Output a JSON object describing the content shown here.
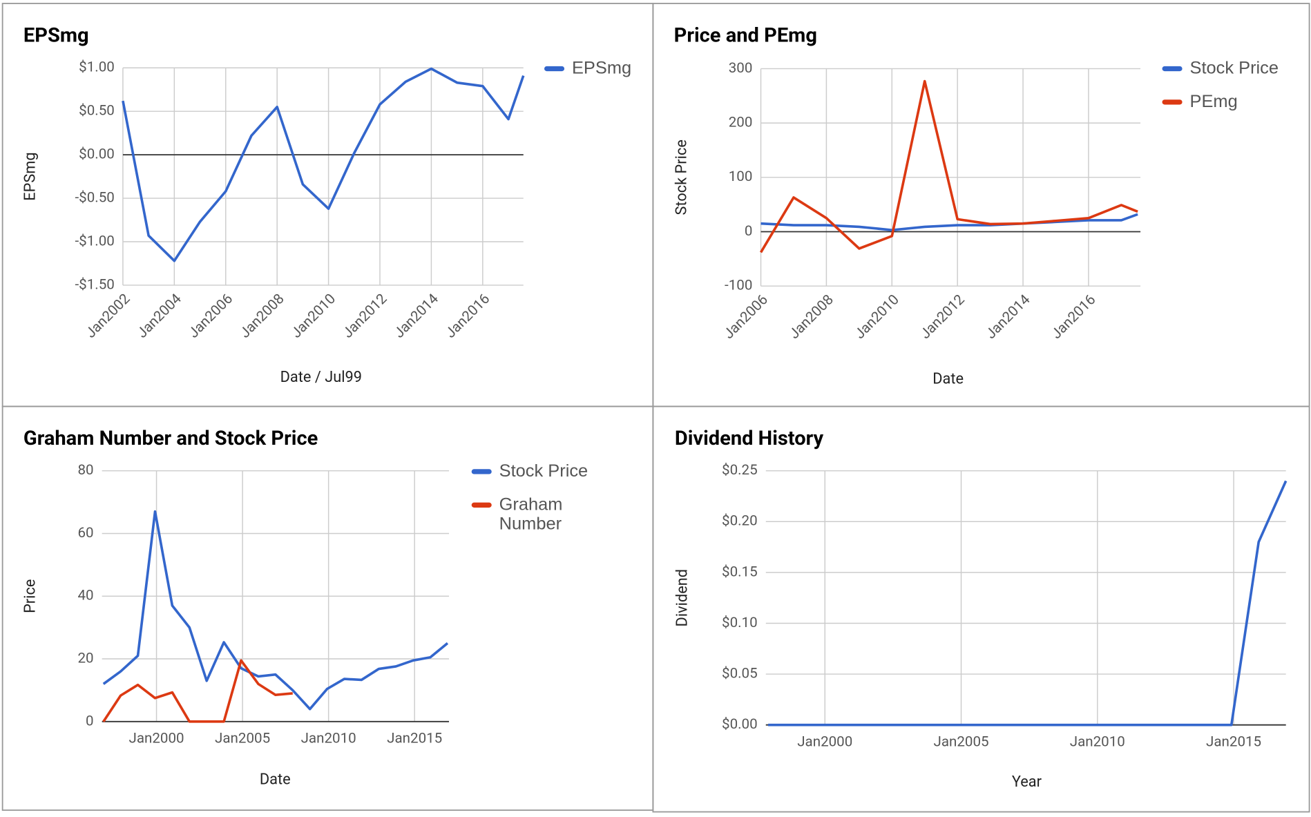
{
  "chart_data": [
    {
      "type": "line",
      "title": "EPSmg",
      "xlabel": "Date / Jul99",
      "ylabel": "EPSmg",
      "x": [
        "Jan2002",
        "Jan2003",
        "Jan2004",
        "Jan2005",
        "Jan2006",
        "Jan2007",
        "Jan2008",
        "Jan2009",
        "Jan2010",
        "Jan2011",
        "Jan2012",
        "Jan2013",
        "Jan2014",
        "Jan2015",
        "Jan2016",
        "Jan2017",
        "Aug2017"
      ],
      "series": [
        {
          "name": "EPSmg",
          "color": "#3366cc",
          "values": [
            0.62,
            -0.93,
            -1.22,
            -0.77,
            -0.42,
            0.22,
            0.55,
            -0.34,
            -0.62,
            0.02,
            0.58,
            0.84,
            0.99,
            0.83,
            0.79,
            0.41,
            0.91
          ]
        }
      ],
      "xlim": [
        "Jan2002",
        "Aug2017"
      ],
      "xticks": [
        "Jan2002",
        "Jan2004",
        "Jan2006",
        "Jan2008",
        "Jan2010",
        "Jan2012",
        "Jan2014",
        "Jan2016"
      ],
      "ylim": [
        -1.5,
        1.0
      ],
      "yticks": [
        {
          "value": -1.5,
          "label": "-$1.50"
        },
        {
          "value": -1.0,
          "label": "-$1.00"
        },
        {
          "value": -0.5,
          "label": "-$0.50"
        },
        {
          "value": 0,
          "label": "$0.00"
        },
        {
          "value": 0.5,
          "label": "$0.50"
        },
        {
          "value": 1.0,
          "label": "$1.00"
        }
      ],
      "grid": true,
      "legend": "right"
    },
    {
      "type": "line",
      "title": "Price and PEmg",
      "xlabel": "Date",
      "ylabel": "Stock Price",
      "x": [
        "Jan2006",
        "Jan2007",
        "Jan2008",
        "Jan2009",
        "Jan2010",
        "Jan2011",
        "Jan2012",
        "Jan2013",
        "Jan2014",
        "Jan2015",
        "Jan2016",
        "Jan2017",
        "Jul2017"
      ],
      "series": [
        {
          "name": "Stock Price",
          "color": "#3366cc",
          "values": [
            15,
            12,
            12,
            9,
            3,
            9,
            12,
            12,
            15,
            18,
            21,
            21,
            32
          ]
        },
        {
          "name": "PEmg",
          "color": "#dc3912",
          "values": [
            -38,
            63,
            25,
            -31,
            -8,
            277,
            23,
            14,
            15,
            20,
            25,
            49,
            37
          ]
        }
      ],
      "xlim": [
        "Jan2006",
        "Aug2017"
      ],
      "xticks": [
        "Jan2006",
        "Jan2008",
        "Jan2010",
        "Jan2012",
        "Jan2014",
        "Jan2016"
      ],
      "ylim": [
        -100,
        300
      ],
      "yticks": [
        -100,
        0,
        100,
        200,
        300
      ],
      "grid": true,
      "legend": "right"
    },
    {
      "type": "line",
      "title": "Graham Number and Stock Price",
      "xlabel": "Date",
      "ylabel": "Price",
      "x": [
        "Dec1996",
        "Dec1997",
        "Dec1998",
        "Dec1999",
        "Dec2000",
        "Dec2001",
        "Dec2002",
        "Dec2003",
        "Dec2004",
        "Dec2005",
        "Dec2006",
        "Dec2007",
        "Dec2008",
        "Dec2009",
        "Dec2010",
        "Dec2011",
        "Dec2012",
        "Dec2013",
        "Dec2014",
        "Dec2015",
        "Dec2016"
      ],
      "series": [
        {
          "name": "Stock Price",
          "color": "#3366cc",
          "values": [
            12,
            16,
            21,
            67,
            37,
            30,
            13,
            25.3,
            17,
            14.4,
            15,
            10,
            4,
            10.4,
            13.6,
            13.3,
            16.8,
            17.6,
            19.5,
            20.5,
            25
          ]
        },
        {
          "name": "Graham Number",
          "color": "#dc3912",
          "values": [
            0,
            8.3,
            11.7,
            7.5,
            9.3,
            0,
            0,
            0,
            19.5,
            12,
            8.5,
            9,
            null,
            null,
            null,
            null,
            null,
            null,
            null,
            null,
            null
          ]
        }
      ],
      "xlim": [
        "Nov1996",
        "Jan2017"
      ],
      "xticks": [
        "Jan2000",
        "Jan2005",
        "Jan2010",
        "Jan2015"
      ],
      "ylim": [
        0,
        80
      ],
      "yticks": [
        0,
        20,
        40,
        60,
        80
      ],
      "grid": true,
      "legend": "right"
    },
    {
      "type": "line",
      "title": "Dividend History",
      "xlabel": "Year",
      "ylabel": "Dividend",
      "x": [
        "Dec1997",
        "Dec1998",
        "Dec1999",
        "Dec2000",
        "Dec2001",
        "Dec2002",
        "Dec2003",
        "Dec2004",
        "Dec2005",
        "Dec2006",
        "Dec2007",
        "Dec2008",
        "Dec2009",
        "Dec2010",
        "Dec2011",
        "Dec2012",
        "Dec2013",
        "Dec2014",
        "Dec2015",
        "Dec2016"
      ],
      "series": [
        {
          "color": "#3366cc",
          "values": [
            0,
            0,
            0,
            0,
            0,
            0,
            0,
            0,
            0,
            0,
            0,
            0,
            0,
            0,
            0,
            0,
            0,
            0,
            0.18,
            0.24
          ]
        }
      ],
      "xlim": [
        "Nov1997",
        "Dec2016"
      ],
      "xticks": [
        "Jan2000",
        "Jan2005",
        "Jan2010",
        "Jan2015"
      ],
      "ylim": [
        0,
        0.25
      ],
      "yticks": [
        {
          "value": 0,
          "label": "$0.00"
        },
        {
          "value": 0.05,
          "label": "$0.05"
        },
        {
          "value": 0.1,
          "label": "$0.10"
        },
        {
          "value": 0.15,
          "label": "$0.15"
        },
        {
          "value": 0.2,
          "label": "$0.20"
        },
        {
          "value": 0.25,
          "label": "$0.25"
        }
      ],
      "grid": true
    }
  ]
}
